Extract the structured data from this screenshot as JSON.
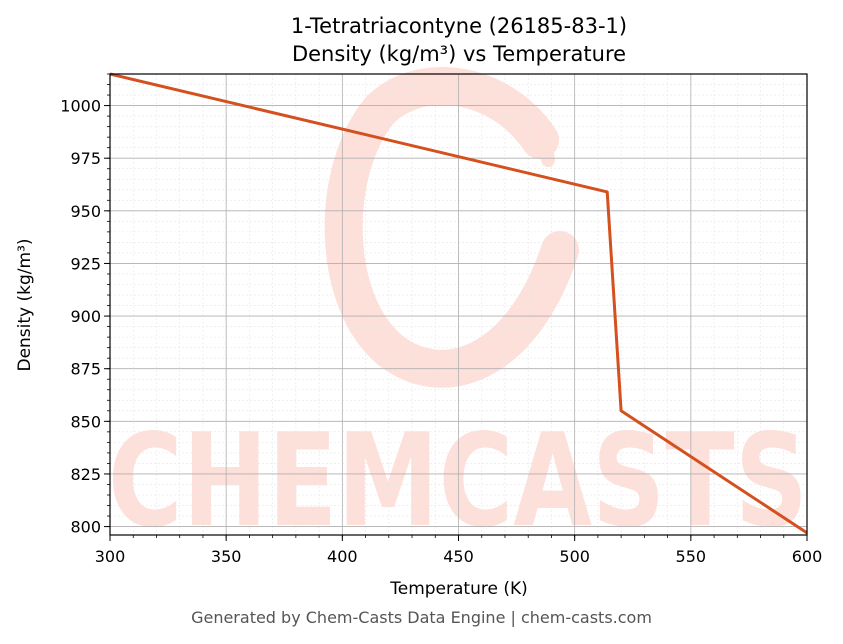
{
  "chart_data": {
    "type": "line",
    "title": "1-Tetratriacontyne (26185-83-1)",
    "subtitle": "Density (kg/m³) vs Temperature",
    "xlabel": "Temperature (K)",
    "ylabel": "Density (kg/m³)",
    "xlim": [
      300,
      600
    ],
    "ylim": [
      796,
      1015
    ],
    "xticks": [
      300,
      350,
      400,
      450,
      500,
      550,
      600
    ],
    "yticks": [
      800,
      825,
      850,
      875,
      900,
      925,
      950,
      975,
      1000
    ],
    "grid": true,
    "line_color": "#d4501e",
    "series": [
      {
        "name": "",
        "x": [
          300,
          514,
          520,
          600
        ],
        "y": [
          1015,
          959,
          855,
          797
        ]
      }
    ]
  },
  "watermark": {
    "text": "CHEMCASTS",
    "color": "#fde0da"
  },
  "footer": {
    "text": "Generated by Chem-Casts Data Engine | chem-casts.com"
  }
}
